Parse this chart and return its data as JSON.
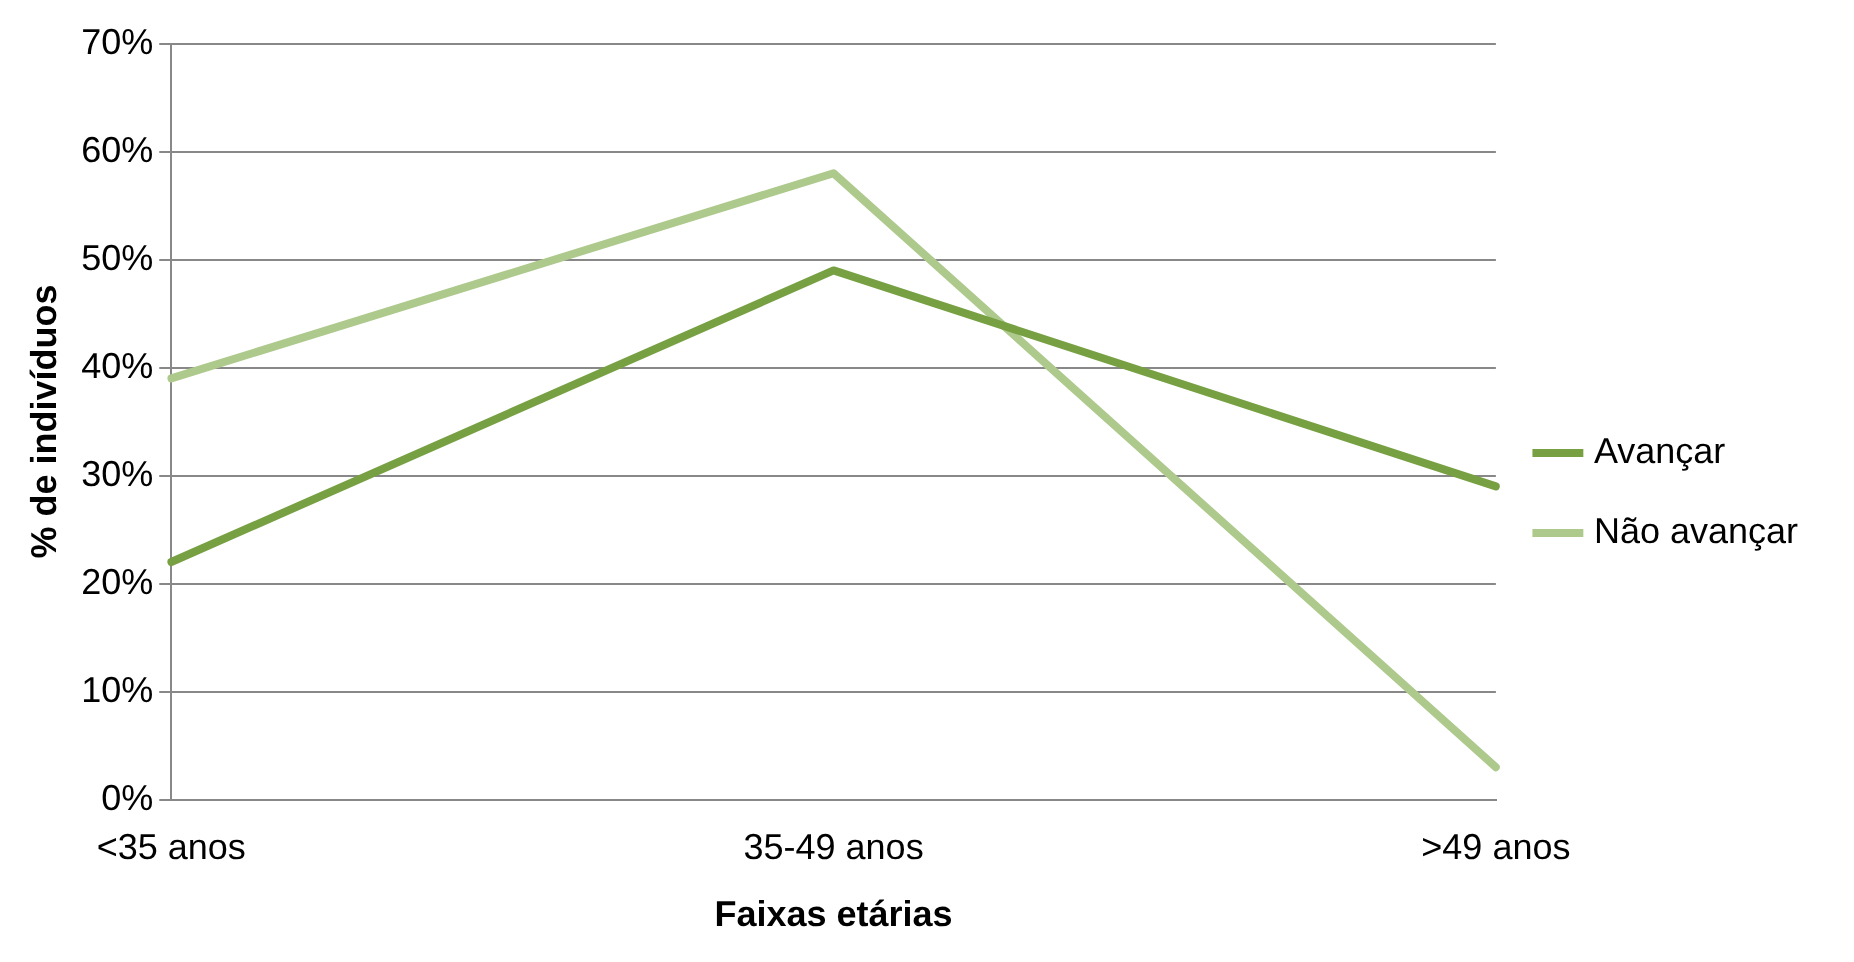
{
  "chart_data": {
    "type": "line",
    "xlabel": "Faixas etárias",
    "ylabel": "% de indivíduos",
    "categories": [
      "<35 anos",
      "35-49 anos",
      ">49 anos"
    ],
    "series": [
      {
        "name": "Avançar",
        "color": "#77a043",
        "values": [
          22,
          49,
          29
        ]
      },
      {
        "name": "Não avançar",
        "color": "#adc98c",
        "values": [
          39,
          58,
          3
        ]
      }
    ],
    "ylim": [
      0,
      70
    ],
    "yticks": [
      {
        "value": 0,
        "label": "0%"
      },
      {
        "value": 10,
        "label": "10%"
      },
      {
        "value": 20,
        "label": "20%"
      },
      {
        "value": 30,
        "label": "30%"
      },
      {
        "value": 40,
        "label": "40%"
      },
      {
        "value": 50,
        "label": "50%"
      },
      {
        "value": 60,
        "label": "60%"
      },
      {
        "value": 70,
        "label": "70%"
      }
    ],
    "grid": "y",
    "legend": "right",
    "marker": "none",
    "line_style": "solid"
  }
}
